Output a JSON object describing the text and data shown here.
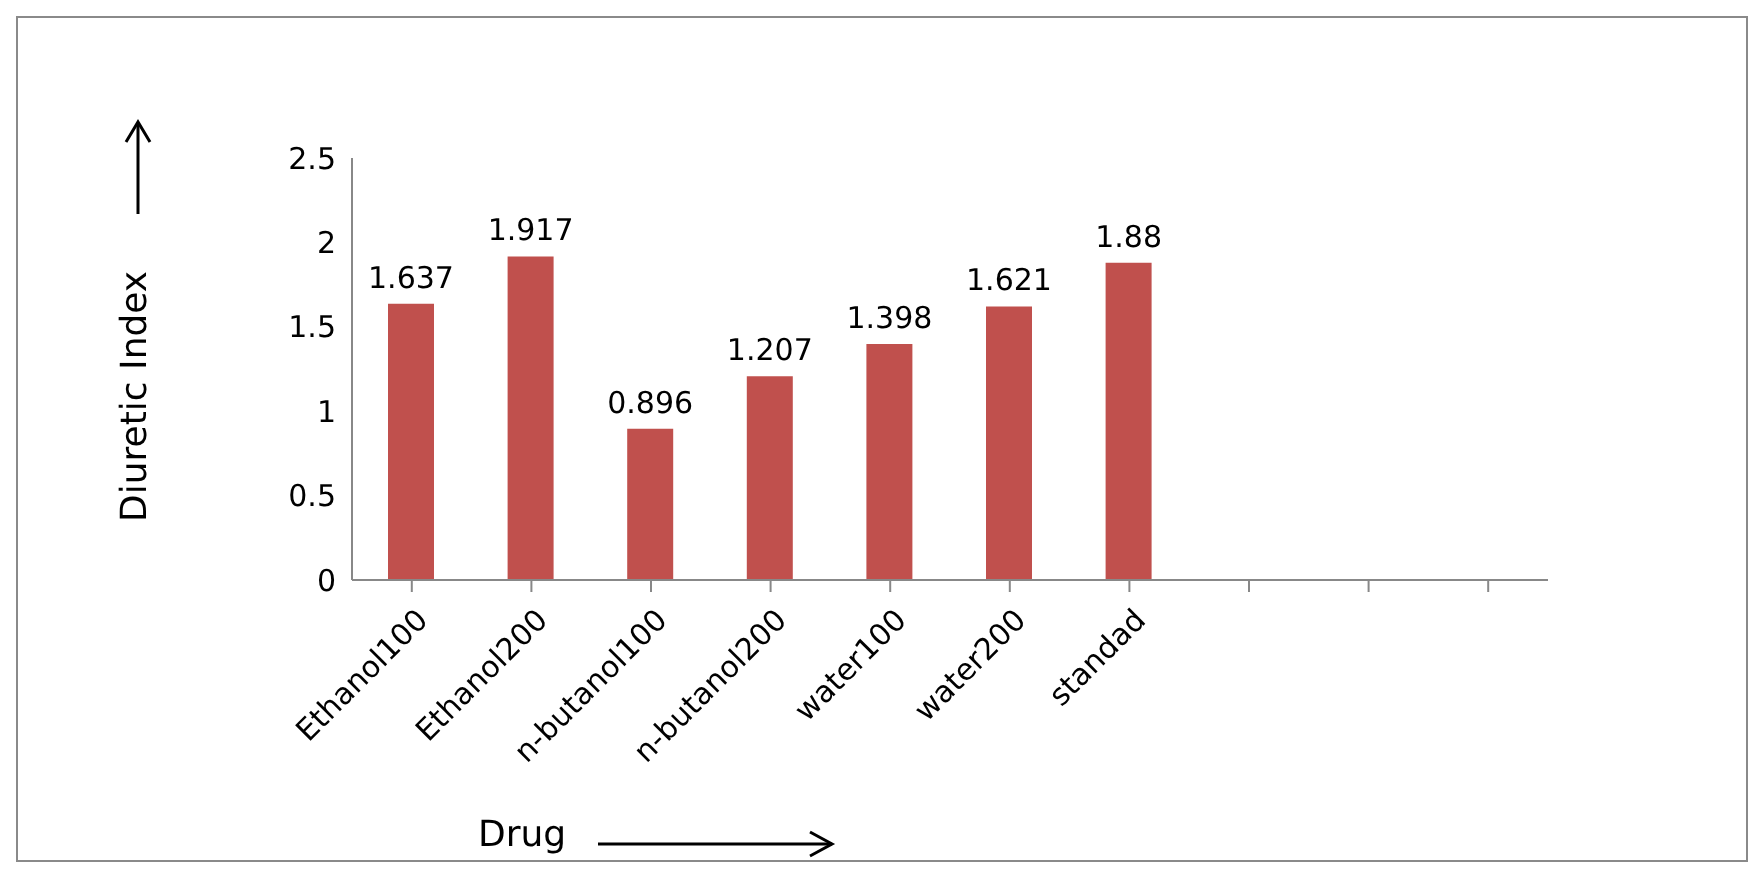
{
  "chart_data": {
    "type": "bar",
    "xlabel": "Drug",
    "ylabel": "Diuretic Index",
    "categories": [
      "Ethanol100",
      "Ethanol200",
      "n-butanol100",
      "n-butanol200",
      "water100",
      "water200",
      "standad",
      null,
      null,
      null
    ],
    "values": [
      1.637,
      1.917,
      0.896,
      1.207,
      1.398,
      1.621,
      1.88,
      null,
      null,
      null
    ],
    "color": "#c0504d",
    "ylim": [
      0,
      2.5
    ],
    "yticks": [
      0,
      0.5,
      1,
      1.5,
      2,
      2.5
    ],
    "grid": false,
    "data_labels": true
  }
}
